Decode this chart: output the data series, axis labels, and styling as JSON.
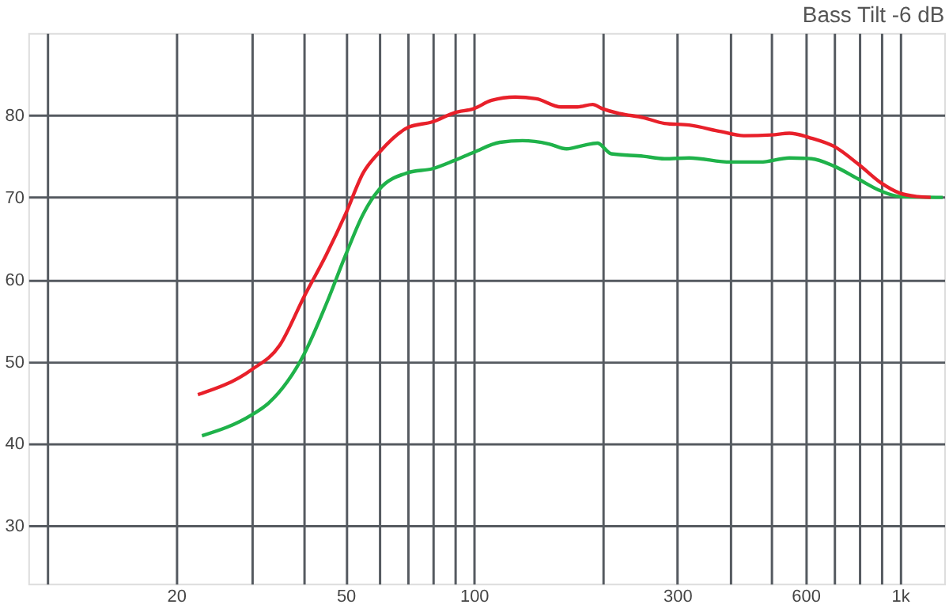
{
  "chart_data": {
    "type": "line",
    "title": "Bass Tilt -6 dB",
    "xlim": [
      9,
      1270
    ],
    "ylim": [
      23,
      90
    ],
    "log": "x",
    "grid": true,
    "legend": false,
    "line_style": "solid",
    "xticks": [
      {
        "value": 10,
        "label": null
      },
      20,
      {
        "value": 30,
        "label": null
      },
      {
        "value": 40,
        "label": null
      },
      50,
      {
        "value": 60,
        "label": null
      },
      {
        "value": 70,
        "label": null
      },
      {
        "value": 80,
        "label": null
      },
      {
        "value": 90,
        "label": null
      },
      100,
      {
        "value": 200,
        "label": null
      },
      300,
      {
        "value": 400,
        "label": null
      },
      {
        "value": 500,
        "label": null
      },
      600,
      {
        "value": 700,
        "label": null
      },
      {
        "value": 800,
        "label": null
      },
      {
        "value": 900,
        "label": null
      },
      {
        "value": 1000,
        "label": "1k"
      }
    ],
    "yticks": [
      30,
      40,
      50,
      60,
      70,
      80
    ],
    "series": [
      {
        "color": "#e8202a",
        "x": [
          22.5,
          30,
          35,
          40,
          45,
          50,
          55,
          60,
          70,
          80,
          90,
          100,
          110,
          125,
          140,
          160,
          175,
          190,
          200,
          220,
          250,
          280,
          320,
          380,
          430,
          500,
          550,
          620,
          700,
          800,
          900,
          1000,
          1100,
          1180
        ],
        "values": [
          46,
          49,
          52,
          58,
          63,
          68,
          73,
          75.5,
          78.5,
          79.2,
          80.3,
          80.8,
          81.8,
          82.2,
          82,
          81,
          81,
          81.3,
          80.8,
          80.2,
          79.7,
          79,
          78.8,
          78,
          77.5,
          77.6,
          77.8,
          77.2,
          76.2,
          74,
          71.8,
          70.5,
          70.1,
          70
        ]
      },
      {
        "color": "#1fb24a",
        "x": [
          23,
          30,
          33,
          40,
          45,
          50,
          55,
          60,
          70,
          80,
          90,
          100,
          115,
          130,
          150,
          165,
          180,
          195,
          210,
          250,
          280,
          320,
          400,
          470,
          550,
          620,
          700,
          800,
          900,
          1000,
          1260
        ],
        "values": [
          41,
          43.5,
          45,
          51,
          57,
          63,
          68,
          71,
          73,
          73.5,
          74.5,
          75.5,
          76.7,
          76.9,
          76.5,
          75.9,
          76.3,
          76.6,
          75.3,
          75,
          74.7,
          74.8,
          74.3,
          74.3,
          74.8,
          74.7,
          73.8,
          72.2,
          70.8,
          70.1,
          70
        ]
      }
    ]
  }
}
